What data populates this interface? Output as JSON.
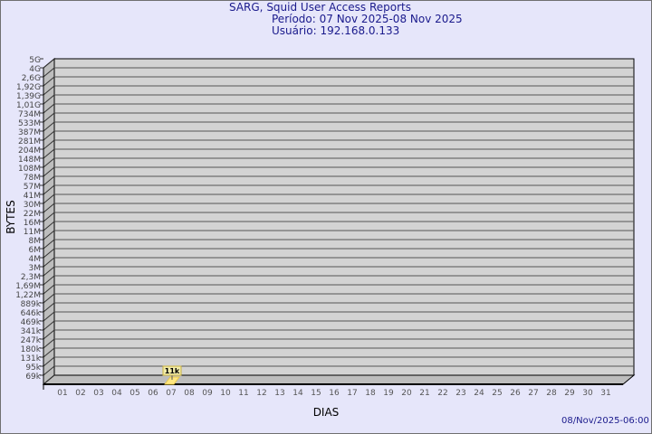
{
  "header": {
    "title": "SARG, Squid User Access Reports",
    "period": "Período: 07 Nov 2025-08 Nov 2025",
    "user": "Usuário: 192.168.0.133"
  },
  "footer": {
    "timestamp": "08/Nov/2025-06:00"
  },
  "colors": {
    "background": "#e6e6fa",
    "plot": "#d3d3d3",
    "bar": "#ffe680",
    "title": "#1a1a8c"
  },
  "chart_data": {
    "type": "bar",
    "xlabel": "DIAS",
    "ylabel": "BYTES",
    "y_scale": "log",
    "yticks": [
      "5G",
      "4G",
      "2,6G",
      "1,92G",
      "1,39G",
      "1,01G",
      "734M",
      "533M",
      "387M",
      "281M",
      "204M",
      "148M",
      "108M",
      "78M",
      "57M",
      "41M",
      "30M",
      "22M",
      "16M",
      "11M",
      "8M",
      "6M",
      "4M",
      "3M",
      "2,3M",
      "1,69M",
      "1,22M",
      "889k",
      "646k",
      "469k",
      "341k",
      "247k",
      "180k",
      "131k",
      "95k",
      "69k"
    ],
    "categories": [
      "01",
      "02",
      "03",
      "04",
      "05",
      "06",
      "07",
      "08",
      "09",
      "10",
      "11",
      "12",
      "13",
      "14",
      "15",
      "16",
      "17",
      "18",
      "19",
      "20",
      "21",
      "22",
      "23",
      "24",
      "25",
      "26",
      "27",
      "28",
      "29",
      "30",
      "31"
    ],
    "values": [
      null,
      null,
      null,
      null,
      null,
      null,
      11000,
      null,
      null,
      null,
      null,
      null,
      null,
      null,
      null,
      null,
      null,
      null,
      null,
      null,
      null,
      null,
      null,
      null,
      null,
      null,
      null,
      null,
      null,
      null,
      null
    ],
    "data_labels": {
      "07": "11k"
    },
    "grid": true
  }
}
